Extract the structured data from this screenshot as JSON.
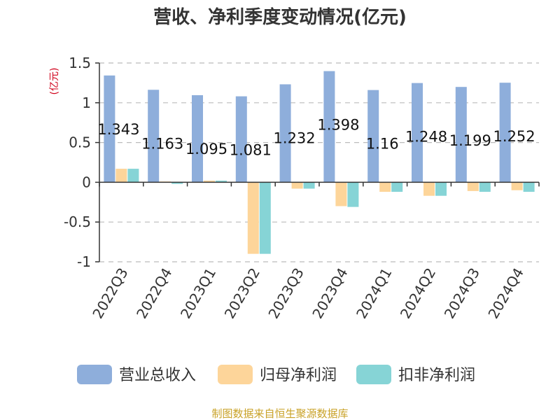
{
  "chart_data": {
    "type": "bar",
    "title": "营收、净利季度变动情况(亿元)",
    "ylabel": "(亿元)",
    "xlabel": "",
    "ylim": [
      -1,
      1.5
    ],
    "yticks": [
      "1.5",
      "1",
      "0.5",
      "0",
      "-0.5",
      "-1"
    ],
    "yticks_values": [
      1.5,
      1,
      0.5,
      0,
      -0.5,
      -1
    ],
    "grid": true,
    "legend_position": "bottom",
    "categories": [
      "2022Q3",
      "2022Q4",
      "2023Q1",
      "2023Q2",
      "2023Q3",
      "2023Q4",
      "2024Q1",
      "2024Q2",
      "2024Q3",
      "2024Q4"
    ],
    "series": [
      {
        "name": "营业总收入",
        "color": "#8eaedb",
        "values": [
          1.343,
          1.163,
          1.095,
          1.081,
          1.232,
          1.398,
          1.16,
          1.248,
          1.199,
          1.252
        ],
        "labels": [
          "1.343",
          "1.163",
          "1.095",
          "1.081",
          "1.232",
          "1.398",
          "1.16",
          "1.248",
          "1.199",
          "1.252"
        ]
      },
      {
        "name": "归母净利润",
        "color": "#fdd59a",
        "values": [
          0.17,
          0.01,
          0.02,
          -0.9,
          -0.08,
          -0.3,
          -0.12,
          -0.17,
          -0.11,
          -0.1
        ]
      },
      {
        "name": "扣非净利润",
        "color": "#86d4d6",
        "values": [
          0.17,
          -0.02,
          0.02,
          -0.9,
          -0.08,
          -0.31,
          -0.12,
          -0.17,
          -0.12,
          -0.12
        ]
      }
    ]
  },
  "source": "制图数据来自恒生聚源数据库"
}
